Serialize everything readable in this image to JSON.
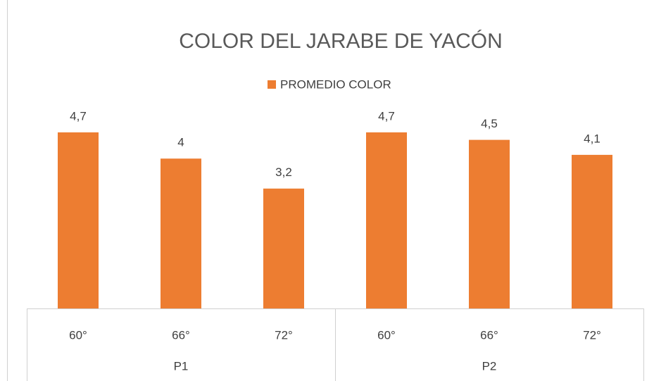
{
  "chart_data": {
    "type": "bar",
    "title": "COLOR DEL JARABE DE YACÓN",
    "categories": [
      "60°",
      "66°",
      "72°",
      "60°",
      "66°",
      "72°"
    ],
    "groups": [
      "P1",
      "P2"
    ],
    "series": [
      {
        "name": "PROMEDIO COLOR",
        "color": "#ed7d31",
        "values": [
          4.7,
          4,
          3.2,
          4.7,
          4.5,
          4.1
        ],
        "value_labels": [
          "4,7",
          "4",
          "3,2",
          "4,7",
          "4,5",
          "4,1"
        ]
      }
    ],
    "ylim": [
      0,
      5
    ],
    "legend": "top"
  }
}
